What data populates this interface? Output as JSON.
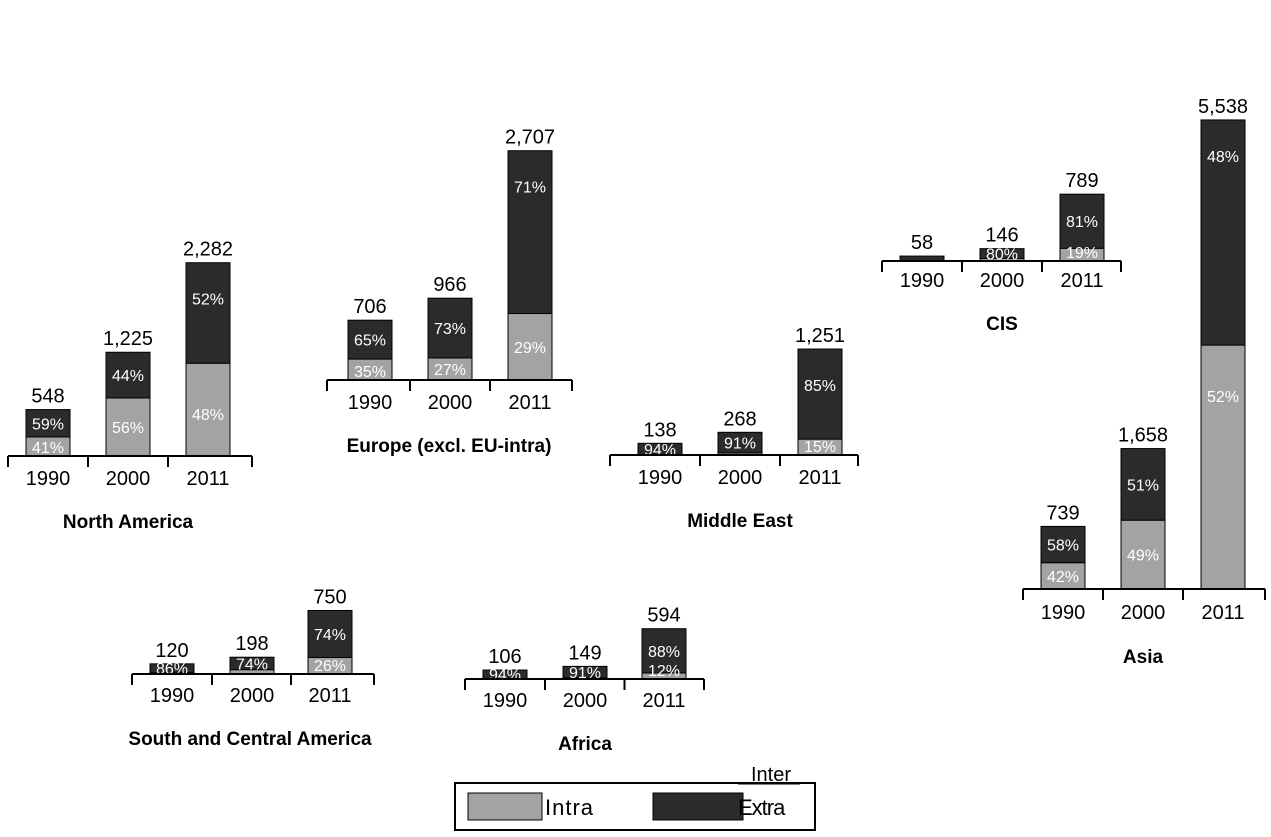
{
  "colors": {
    "intra": "#a3a3a3",
    "extra": "#2b2b2b",
    "axis": "#000000",
    "inner_label": "#ffffff"
  },
  "legend": {
    "title": "Inter",
    "items": [
      {
        "label": "Intra",
        "color": "#a3a3a3"
      },
      {
        "label": "Extra",
        "color": "#2b2b2b"
      }
    ]
  },
  "chart_data": [
    {
      "type": "bar",
      "stacked": true,
      "title": "North America",
      "categories": [
        "1990",
        "2000",
        "2011"
      ],
      "totals": [
        548,
        1225,
        2282
      ],
      "total_labels": [
        "548",
        "1,225",
        "2,282"
      ],
      "series": [
        {
          "name": "Intra",
          "percent": [
            41,
            56,
            48
          ],
          "labels": [
            "41%",
            "56%",
            "48%"
          ]
        },
        {
          "name": "Extra",
          "percent": [
            59,
            44,
            52
          ],
          "labels": [
            "59%",
            "44%",
            "52%"
          ]
        }
      ]
    },
    {
      "type": "bar",
      "stacked": true,
      "title": "Europe (excl. EU-intra)",
      "categories": [
        "1990",
        "2000",
        "2011"
      ],
      "totals": [
        706,
        966,
        2707
      ],
      "total_labels": [
        "706",
        "966",
        "2,707"
      ],
      "series": [
        {
          "name": "Intra",
          "percent": [
            35,
            27,
            29
          ],
          "labels": [
            "35%",
            "27%",
            "29%"
          ]
        },
        {
          "name": "Extra",
          "percent": [
            65,
            73,
            71
          ],
          "labels": [
            "65%",
            "73%",
            "71%"
          ]
        }
      ]
    },
    {
      "type": "bar",
      "stacked": true,
      "title": "Middle East",
      "categories": [
        "1990",
        "2000",
        "2011"
      ],
      "totals": [
        138,
        268,
        1251
      ],
      "total_labels": [
        "138",
        "268",
        "1,251"
      ],
      "series": [
        {
          "name": "Intra",
          "percent": [
            6,
            9,
            15
          ],
          "labels": [
            "",
            "",
            "15%"
          ]
        },
        {
          "name": "Extra",
          "percent": [
            94,
            91,
            85
          ],
          "labels": [
            "94%",
            "91%",
            "85%"
          ]
        }
      ]
    },
    {
      "type": "bar",
      "stacked": true,
      "title": "CIS",
      "categories": [
        "1990",
        "2000",
        "2011"
      ],
      "totals": [
        58,
        146,
        789
      ],
      "total_labels": [
        "58",
        "146",
        "789"
      ],
      "series": [
        {
          "name": "Intra",
          "percent": [
            0,
            20,
            19
          ],
          "labels": [
            "",
            "",
            "19%"
          ]
        },
        {
          "name": "Extra",
          "percent": [
            100,
            80,
            81
          ],
          "labels": [
            "",
            "80%",
            "81%"
          ]
        }
      ]
    },
    {
      "type": "bar",
      "stacked": true,
      "title": "Asia",
      "categories": [
        "1990",
        "2000",
        "2011"
      ],
      "totals": [
        739,
        1658,
        5538
      ],
      "total_labels": [
        "739",
        "1,658",
        "5,538"
      ],
      "series": [
        {
          "name": "Intra",
          "percent": [
            42,
            49,
            52
          ],
          "labels": [
            "42%",
            "49%",
            "52%"
          ]
        },
        {
          "name": "Extra",
          "percent": [
            58,
            51,
            48
          ],
          "labels": [
            "58%",
            "51%",
            "48%"
          ]
        }
      ]
    },
    {
      "type": "bar",
      "stacked": true,
      "title": "South and Central America",
      "categories": [
        "1990",
        "2000",
        "2011"
      ],
      "totals": [
        120,
        198,
        750
      ],
      "total_labels": [
        "120",
        "198",
        "750"
      ],
      "series": [
        {
          "name": "Intra",
          "percent": [
            14,
            26,
            26
          ],
          "labels": [
            "",
            "",
            "26%"
          ]
        },
        {
          "name": "Extra",
          "percent": [
            86,
            74,
            74
          ],
          "labels": [
            "86%",
            "74%",
            "74%"
          ]
        }
      ]
    },
    {
      "type": "bar",
      "stacked": true,
      "title": "Africa",
      "categories": [
        "1990",
        "2000",
        "2011"
      ],
      "totals": [
        106,
        149,
        594
      ],
      "total_labels": [
        "106",
        "149",
        "594"
      ],
      "series": [
        {
          "name": "Intra",
          "percent": [
            6,
            9,
            12
          ],
          "labels": [
            "",
            "",
            "12%"
          ]
        },
        {
          "name": "Extra",
          "percent": [
            94,
            91,
            88
          ],
          "labels": [
            "94%",
            "91%",
            "88%"
          ]
        }
      ]
    }
  ]
}
